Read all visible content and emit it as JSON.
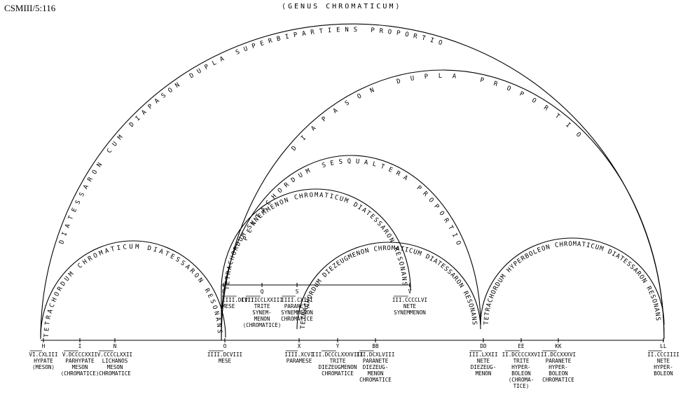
{
  "reference": "CSMIII/5:116",
  "title": "⟨GENUS CHROMATICUM⟩",
  "arcs": [
    {
      "id": "outer",
      "label": "DIATESSARON CUM DIAPASON DUPLA SUPERBIPARTIENS PROPORTIO"
    },
    {
      "id": "diapason",
      "label": "DIAPASON DUPLA PROPORTIO"
    },
    {
      "id": "pentachordum",
      "label": "PENTACHORDUM SESQUALTERA PROPORTIO"
    },
    {
      "id": "meson",
      "label": "TETRACHORDUM CHROMATICUM DIATESSARON RESONANS"
    },
    {
      "id": "synemmenon",
      "label": "TETRACHORDUM SYNEMMENON CHROMATICUM DIATESSARON RESONANS"
    },
    {
      "id": "diezeugmenon",
      "label": "TETRACHORDUM DIEZEUGMENON CHROMATICUM DIATESSARON RESONANS"
    },
    {
      "id": "hyperboleon",
      "label": "TETRACHORDUM HYPERBOLEON CHROMATICUM DIATESSARON RESONANS"
    }
  ],
  "upper_notes": [
    {
      "letter": "O",
      "value": "IIII.DCVIII",
      "lines": [
        "MESE"
      ]
    },
    {
      "letter": "Q",
      "value": "IIII.CCLXXIII",
      "lines": [
        "TRITE",
        "SYNEM-",
        "MENON",
        "⟨CHROMATICE⟩"
      ]
    },
    {
      "letter": "S",
      "value": "IIII.CXIII",
      "lines": [
        "PARANETE",
        "SYNEMMENON",
        "CHROMATICE"
      ]
    },
    {
      "letter": "V",
      "value": "III.CCCCLVI",
      "lines": [
        "NETE",
        "SYNEMMENON"
      ]
    }
  ],
  "lower_notes": [
    {
      "letter": "H",
      "value": "VI.CXLIII",
      "lines": [
        "HYPATE",
        "⟨MESON⟩"
      ]
    },
    {
      "letter": "I",
      "value": "V.DCCCCXXII",
      "lines": [
        "PARHYPATE",
        "MESON",
        "⟨CHROMATICE⟩"
      ]
    },
    {
      "letter": "N",
      "value": "V.CCCCLXXII",
      "lines": [
        "LICHANOS",
        "MESON",
        "CHROMATICE"
      ]
    },
    {
      "letter": "O",
      "value": "IIII.DCVIII",
      "lines": [
        "MESE"
      ]
    },
    {
      "letter": "X",
      "value": "IIII.XCVI",
      "lines": [
        "PARAMESE"
      ]
    },
    {
      "letter": "Y",
      "value": "III.DCCCLXXXVIII",
      "lines": [
        "TRITE",
        "DIEZEUGMENON",
        "CHROMATICE"
      ]
    },
    {
      "letter": "BB",
      "value": "III.DCXLVIII",
      "lines": [
        "PARANETE",
        "DIEZEUG-",
        "MENON",
        "CHROMATICE"
      ]
    },
    {
      "letter": "DD",
      "value": "III.LXXII",
      "lines": [
        "NETE",
        "DIEZEUG-",
        "MENON"
      ]
    },
    {
      "letter": "EE",
      "value": "II.DCCCCXXVI",
      "lines": [
        "TRITE",
        "HYPER-",
        "BOLEON",
        "⟨CHROMA-",
        "TICE⟩"
      ]
    },
    {
      "letter": "KK",
      "value": "II.DCCXXXVI",
      "lines": [
        "PARANETE",
        "HYPER-",
        "BOLEON",
        "CHROMATICE"
      ]
    },
    {
      "letter": "LL",
      "value": "II.CCCIIII",
      "lines": [
        "NETE",
        "HYPER-",
        "BOLEON"
      ]
    }
  ]
}
